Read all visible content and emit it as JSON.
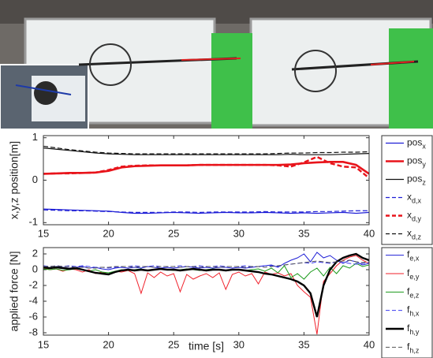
{
  "chart_data": [
    {
      "type": "line",
      "ylabel": "x,y,z position[m]",
      "xlim": [
        15,
        40
      ],
      "xticks": [
        15,
        20,
        25,
        30,
        35,
        40
      ],
      "ylim": [
        -1.05,
        1.05
      ],
      "yticks": [
        -1,
        0,
        1
      ],
      "x": [
        15,
        16,
        17,
        18,
        19,
        20,
        21,
        22,
        23,
        24,
        25,
        26,
        27,
        28,
        29,
        30,
        31,
        32,
        33,
        34,
        35,
        36,
        37,
        38,
        39,
        40
      ],
      "series": [
        {
          "name": "pos",
          "subscript": "x",
          "color": "#1f1fd6",
          "dashed": false,
          "width": 1.2,
          "values": [
            -0.68,
            -0.69,
            -0.7,
            -0.71,
            -0.72,
            -0.73,
            -0.76,
            -0.78,
            -0.78,
            -0.77,
            -0.76,
            -0.77,
            -0.78,
            -0.77,
            -0.76,
            -0.77,
            -0.77,
            -0.76,
            -0.77,
            -0.78,
            -0.77,
            -0.78,
            -0.77,
            -0.76,
            -0.78,
            -0.76
          ]
        },
        {
          "name": "pos",
          "subscript": "y",
          "color": "#e8141b",
          "dashed": false,
          "width": 2.6,
          "values": [
            0.15,
            0.16,
            0.17,
            0.17,
            0.18,
            0.22,
            0.3,
            0.33,
            0.34,
            0.35,
            0.35,
            0.35,
            0.36,
            0.36,
            0.36,
            0.36,
            0.36,
            0.36,
            0.36,
            0.37,
            0.4,
            0.42,
            0.43,
            0.43,
            0.36,
            0.15
          ]
        },
        {
          "name": "pos",
          "subscript": "z",
          "color": "#111111",
          "dashed": false,
          "width": 1.2,
          "values": [
            0.76,
            0.73,
            0.7,
            0.67,
            0.64,
            0.62,
            0.61,
            0.6,
            0.6,
            0.6,
            0.6,
            0.6,
            0.6,
            0.6,
            0.6,
            0.6,
            0.6,
            0.6,
            0.6,
            0.61,
            0.6,
            0.6,
            0.6,
            0.61,
            0.62,
            0.63
          ]
        },
        {
          "name": "x",
          "subscript": "d,x",
          "color": "#1f1fd6",
          "dashed": true,
          "width": 1.2,
          "values": [
            -0.7,
            -0.71,
            -0.72,
            -0.72,
            -0.73,
            -0.74,
            -0.75,
            -0.76,
            -0.76,
            -0.76,
            -0.75,
            -0.75,
            -0.76,
            -0.75,
            -0.75,
            -0.75,
            -0.75,
            -0.74,
            -0.75,
            -0.75,
            -0.75,
            -0.74,
            -0.74,
            -0.73,
            -0.72,
            -0.72
          ]
        },
        {
          "name": "x",
          "subscript": "d,y",
          "color": "#e8141b",
          "dashed": true,
          "width": 2.4,
          "values": [
            0.15,
            0.16,
            0.16,
            0.17,
            0.18,
            0.24,
            0.32,
            0.34,
            0.35,
            0.35,
            0.35,
            0.35,
            0.36,
            0.36,
            0.36,
            0.36,
            0.36,
            0.36,
            0.35,
            0.32,
            0.42,
            0.55,
            0.4,
            0.32,
            0.3,
            0.05
          ]
        },
        {
          "name": "x",
          "subscript": "d,z",
          "color": "#111111",
          "dashed": true,
          "width": 1.2,
          "values": [
            0.8,
            0.76,
            0.72,
            0.69,
            0.66,
            0.64,
            0.63,
            0.62,
            0.62,
            0.62,
            0.62,
            0.62,
            0.62,
            0.62,
            0.62,
            0.62,
            0.62,
            0.62,
            0.63,
            0.64,
            0.64,
            0.65,
            0.65,
            0.66,
            0.66,
            0.67
          ]
        }
      ]
    },
    {
      "type": "line",
      "ylabel": "applied force [N]",
      "xlabel": "time [s]",
      "xlim": [
        15,
        40
      ],
      "xticks": [
        15,
        20,
        25,
        30,
        35,
        40
      ],
      "ylim": [
        -8.3,
        2.8
      ],
      "yticks": [
        -8,
        -6,
        -4,
        -2,
        0,
        2
      ],
      "x": [
        15,
        15.5,
        16,
        16.5,
        17,
        17.5,
        18,
        18.5,
        19,
        19.5,
        20,
        20.5,
        21,
        21.5,
        22,
        22.5,
        23,
        23.5,
        24,
        24.5,
        25,
        25.5,
        26,
        26.5,
        27,
        27.5,
        28,
        28.5,
        29,
        29.5,
        30,
        30.5,
        31,
        31.5,
        32,
        32.5,
        33,
        33.5,
        34,
        34.5,
        35,
        35.5,
        36,
        36.5,
        37,
        37.5,
        38,
        38.5,
        39,
        39.5,
        40
      ],
      "series": [
        {
          "name": "f",
          "subscript": "e,x",
          "color": "#1f1fd6",
          "dashed": false,
          "width": 1,
          "values": [
            0.3,
            0.2,
            0.4,
            0.3,
            0.2,
            0.3,
            0.4,
            0.2,
            0.3,
            0.1,
            0,
            0.2,
            0.3,
            0.2,
            0.3,
            0.2,
            0.4,
            0.3,
            0.2,
            0.3,
            0.2,
            0.3,
            0.4,
            0.3,
            0.2,
            0.3,
            0.2,
            0.3,
            0.3,
            0.2,
            0.3,
            0.2,
            0.3,
            0.4,
            0.5,
            0.6,
            0.3,
            0.8,
            1.2,
            1.5,
            2,
            1,
            2.2,
            1.5,
            1.8,
            1.2,
            0.8,
            1.2,
            1,
            0.6,
            0.8
          ]
        },
        {
          "name": "f",
          "subscript": "e,y",
          "color": "#f0202a",
          "dashed": false,
          "width": 1,
          "values": [
            0.2,
            0,
            0.1,
            -0.2,
            0.1,
            0,
            -0.3,
            0,
            -0.5,
            -0.3,
            -0.6,
            -0.2,
            -0.3,
            -0.1,
            -0.5,
            -3,
            -0.4,
            -1,
            -0.3,
            -0.8,
            -0.5,
            -2.8,
            -0.6,
            -1.2,
            -0.8,
            -0.5,
            -1,
            -0.4,
            -2.5,
            -0.6,
            -0.3,
            -0.8,
            -0.5,
            -1.8,
            -0.3,
            -0.6,
            -0.4,
            -0.8,
            -0.5,
            -2,
            -2.8,
            -3.5,
            -8.2,
            -1.5,
            -0.5,
            0.5,
            1.2,
            1.6,
            1.8,
            1.2,
            0.8
          ]
        },
        {
          "name": "f",
          "subscript": "e,z",
          "color": "#1a9a1a",
          "dashed": false,
          "width": 1,
          "values": [
            0.1,
            0,
            0.1,
            -0.1,
            0,
            0.1,
            0,
            -0.2,
            0,
            -0.3,
            -0.4,
            -0.2,
            0,
            -0.1,
            0,
            0.1,
            -0.1,
            0,
            0.1,
            0,
            -0.1,
            0,
            0.1,
            0,
            -0.1,
            0,
            0.1,
            0,
            -0.1,
            0,
            0,
            -0.1,
            0,
            0.1,
            -0.2,
            0.2,
            -0.4,
            0.5,
            -1,
            -0.5,
            -1.2,
            -0.3,
            0.2,
            -0.8,
            0.3,
            -0.5,
            0.5,
            0.2,
            0.8,
            0.4,
            0.6
          ]
        },
        {
          "name": "f",
          "subscript": "h,x",
          "color": "#3a3af0",
          "dashed": true,
          "width": 1,
          "values": [
            0.5,
            0.4,
            0.5,
            0.4,
            0.5,
            0.4,
            0.5,
            0.4,
            0.3,
            0.3,
            0.2,
            0.3,
            0.4,
            0.4,
            0.5,
            0.4,
            0.4,
            0.5,
            0.4,
            0.4,
            0.4,
            0.5,
            0.4,
            0.4,
            0.5,
            0.4,
            0.4,
            0.5,
            0.4,
            0.4,
            0.4,
            0.5,
            0.4,
            0.4,
            0.5,
            0.5,
            0.4,
            0.6,
            0.7,
            0.8,
            0.9,
            0.8,
            1,
            0.9,
            0.8,
            1,
            0.9,
            0.8,
            0.7,
            0.8,
            0.9
          ]
        },
        {
          "name": "f",
          "subscript": "h,y",
          "color": "#000000",
          "dashed": false,
          "width": 2.4,
          "values": [
            0.3,
            0.2,
            0.3,
            0.2,
            0.1,
            0.2,
            0,
            -0.2,
            -0.4,
            -0.5,
            -0.6,
            -0.3,
            -0.1,
            0,
            -0.1,
            0,
            -0.1,
            0,
            0.1,
            0,
            0,
            -0.1,
            0,
            0.1,
            0,
            -0.1,
            0,
            0,
            -0.1,
            0,
            0,
            -0.1,
            -0.2,
            -0.3,
            -0.5,
            -0.6,
            -0.8,
            -1,
            -1.2,
            -1.5,
            -2,
            -3,
            -6,
            -2,
            0,
            1,
            1.5,
            1.8,
            2,
            1.5,
            1.2
          ]
        },
        {
          "name": "f",
          "subscript": "h,z",
          "color": "#555555",
          "dashed": true,
          "width": 1,
          "values": [
            0.4,
            0.4,
            0.5,
            0.4,
            0.4,
            0.3,
            0.3,
            0.2,
            0.2,
            0.3,
            0.3,
            0.4,
            0.4,
            0.4,
            0.3,
            0.4,
            0.4,
            0.3,
            0.4,
            0.4,
            0.4,
            0.3,
            0.4,
            0.4,
            0.3,
            0.4,
            0.4,
            0.3,
            0.4,
            0.4,
            0.4,
            0.3,
            0.4,
            0.4,
            0.3,
            0.4,
            0.5,
            0.6,
            0.7,
            0.8,
            0.9,
            1,
            1.1,
            1,
            0.9,
            1,
            1.1,
            1.2,
            1,
            0.9,
            1
          ]
        }
      ]
    }
  ]
}
